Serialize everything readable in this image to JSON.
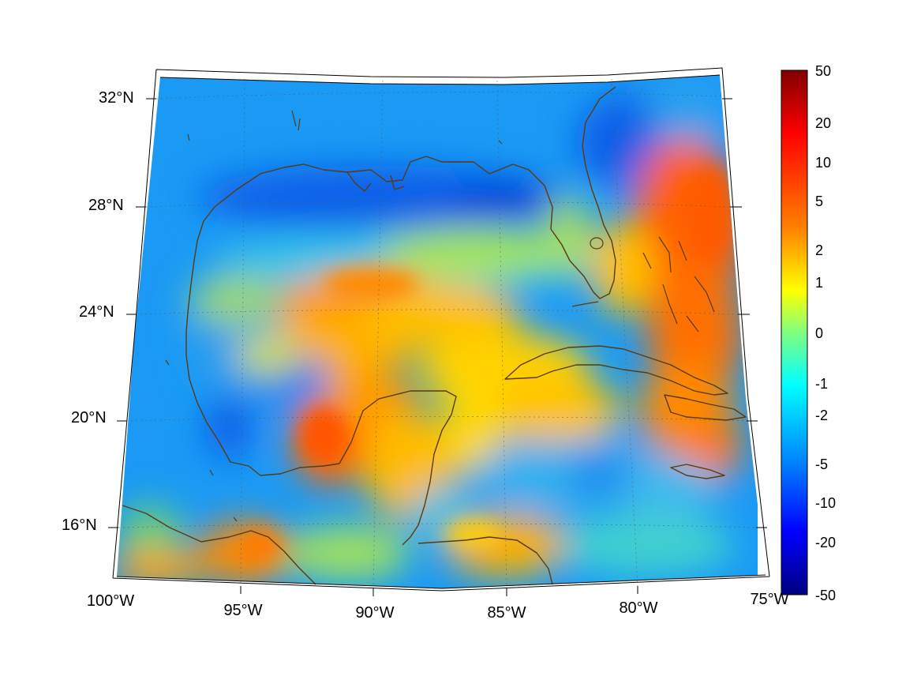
{
  "map": {
    "latitude_labels": [
      "32°N",
      "28°N",
      "24°N",
      "20°N",
      "16°N"
    ],
    "longitude_labels": [
      "100°W",
      "95°W",
      "90°W",
      "85°W",
      "80°W",
      "75°W"
    ],
    "colors": {
      "coastline": "#5a3a12",
      "background": "#ffffff"
    }
  },
  "colorbar": {
    "labels": [
      "50",
      "20",
      "10",
      "5",
      "2",
      "1",
      "0",
      "-1",
      "-2",
      "-5",
      "-10",
      "-20",
      "-50"
    ],
    "stops": [
      "#800000",
      "#ff0000",
      "#ff8000",
      "#ffff00",
      "#80ff80",
      "#00ffff",
      "#0080ff",
      "#0000ff",
      "#000080"
    ]
  }
}
